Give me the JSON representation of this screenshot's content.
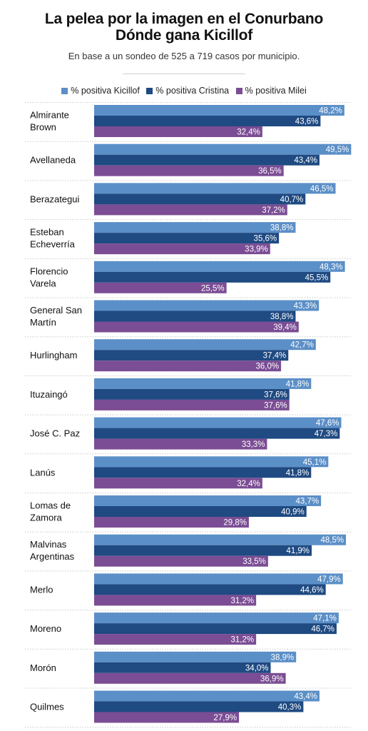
{
  "title_line1": "La pelea por la imagen en el Conurbano",
  "title_line2": "Dónde gana Kicillof",
  "subtitle": "En base a un sondeo de 525 a 719 casos por municipio.",
  "colors": {
    "kicillof": "#5b8fc7",
    "cristina": "#1f4a82",
    "milei": "#7b4d94"
  },
  "chart_data": {
    "type": "bar",
    "orientation": "horizontal",
    "grid": false,
    "legend_position": "top",
    "categories": [
      "Almirante Brown",
      "Avellaneda",
      "Berazategui",
      "Esteban Echeverría",
      "Florencio Varela",
      "General San Martín",
      "Hurlingham",
      "Ituzaingó",
      "José C. Paz",
      "Lanús",
      "Lomas de Zamora",
      "Malvinas Argentinas",
      "Merlo",
      "Moreno",
      "Morón",
      "Quilmes"
    ],
    "category_lines": [
      [
        "Almirante",
        "Brown"
      ],
      [
        "Avellaneda"
      ],
      [
        "Berazategui"
      ],
      [
        "Esteban",
        "Echeverría"
      ],
      [
        "Florencio",
        "Varela"
      ],
      [
        "General San",
        "Martín"
      ],
      [
        "Hurlingham"
      ],
      [
        "Ituzaingó"
      ],
      [
        "José C. Paz"
      ],
      [
        "Lanús"
      ],
      [
        "Lomas de",
        "Zamora"
      ],
      [
        "Malvinas",
        "Argentinas"
      ],
      [
        "Merlo"
      ],
      [
        "Moreno"
      ],
      [
        "Morón"
      ],
      [
        "Quilmes"
      ]
    ],
    "series": [
      {
        "name": "% positiva Kicillof",
        "values": [
          48.2,
          49.5,
          46.5,
          38.8,
          48.3,
          43.3,
          42.7,
          41.8,
          47.6,
          45.1,
          43.7,
          48.5,
          47.9,
          47.1,
          38.9,
          43.4
        ]
      },
      {
        "name": "% positiva Cristina",
        "values": [
          43.6,
          43.4,
          40.7,
          35.6,
          45.5,
          38.8,
          37.4,
          37.6,
          47.3,
          41.8,
          40.9,
          41.9,
          44.6,
          46.7,
          34.0,
          40.3
        ]
      },
      {
        "name": "% positiva Milei",
        "values": [
          32.4,
          36.5,
          37.2,
          33.9,
          25.5,
          39.4,
          36.0,
          37.6,
          33.3,
          32.4,
          29.8,
          33.5,
          31.2,
          31.2,
          36.9,
          27.9
        ]
      }
    ],
    "value_format": "comma_decimal_percent"
  }
}
